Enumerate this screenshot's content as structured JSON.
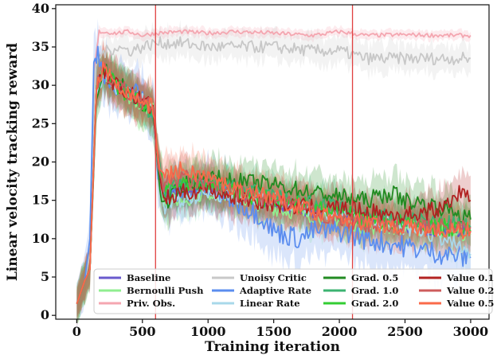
{
  "chart_data": {
    "type": "line",
    "title": "",
    "xlabel": "Training iteration",
    "ylabel": "Linear velocity tracking reward",
    "xlim": [
      -160,
      3140
    ],
    "ylim": [
      -0.5,
      40.5
    ],
    "xticks": [
      0,
      500,
      1000,
      1500,
      2000,
      2500,
      3000
    ],
    "yticks": [
      0,
      5,
      10,
      15,
      20,
      25,
      30,
      35,
      40
    ],
    "grid": false,
    "legend": "bottom",
    "legend_columns": 4,
    "vlines": [
      {
        "x": 600,
        "color": "#e04040"
      },
      {
        "x": 2100,
        "color": "#e04040"
      }
    ],
    "series": [
      {
        "name": "Baseline",
        "color": "#6a5acd",
        "band": 1.8,
        "points": [
          [
            0,
            1.5
          ],
          [
            60,
            4.5
          ],
          [
            100,
            6
          ],
          [
            150,
            30
          ],
          [
            200,
            32
          ],
          [
            300,
            30
          ],
          [
            400,
            29
          ],
          [
            500,
            28
          ],
          [
            580,
            27
          ],
          [
            620,
            20
          ],
          [
            660,
            16
          ],
          [
            800,
            16.5
          ],
          [
            1000,
            16
          ],
          [
            1200,
            15.5
          ],
          [
            1500,
            14.5
          ],
          [
            1800,
            13.5
          ],
          [
            2000,
            13
          ],
          [
            2200,
            12
          ],
          [
            2500,
            11.5
          ],
          [
            2800,
            11
          ],
          [
            3000,
            11
          ]
        ]
      },
      {
        "name": "Bernoulli Push",
        "color": "#90ee90",
        "band": 2.2,
        "points": [
          [
            0,
            1.5
          ],
          [
            60,
            4.5
          ],
          [
            100,
            6
          ],
          [
            150,
            29
          ],
          [
            200,
            32
          ],
          [
            300,
            30
          ],
          [
            400,
            28.5
          ],
          [
            500,
            27.5
          ],
          [
            580,
            27
          ],
          [
            620,
            20
          ],
          [
            660,
            15
          ],
          [
            800,
            15
          ],
          [
            1000,
            16
          ],
          [
            1200,
            15.5
          ],
          [
            1500,
            14
          ],
          [
            1800,
            13
          ],
          [
            2000,
            12.5
          ],
          [
            2200,
            11.5
          ],
          [
            2500,
            11.5
          ],
          [
            2800,
            11
          ],
          [
            3000,
            10.5
          ]
        ]
      },
      {
        "name": "Priv. Obs.",
        "color": "#f4a6b0",
        "band": 0.6,
        "points": [
          [
            0,
            1.5
          ],
          [
            60,
            4.5
          ],
          [
            100,
            8
          ],
          [
            140,
            33
          ],
          [
            170,
            37
          ],
          [
            300,
            36.8
          ],
          [
            400,
            37
          ],
          [
            500,
            36.5
          ],
          [
            600,
            36.8
          ],
          [
            800,
            37
          ],
          [
            1000,
            36.8
          ],
          [
            1200,
            37
          ],
          [
            1500,
            36.8
          ],
          [
            1800,
            36.5
          ],
          [
            2000,
            37
          ],
          [
            2200,
            36.5
          ],
          [
            2500,
            36.6
          ],
          [
            2800,
            36.5
          ],
          [
            3000,
            36.5
          ]
        ]
      },
      {
        "name": "Unoisy Critic",
        "color": "#c8c8c8",
        "band": 1.8,
        "points": [
          [
            0,
            1.5
          ],
          [
            60,
            4.5
          ],
          [
            100,
            8
          ],
          [
            140,
            32
          ],
          [
            180,
            34
          ],
          [
            300,
            35
          ],
          [
            400,
            34.5
          ],
          [
            500,
            35
          ],
          [
            600,
            35.5
          ],
          [
            800,
            35.5
          ],
          [
            1000,
            35
          ],
          [
            1200,
            35
          ],
          [
            1500,
            35
          ],
          [
            1800,
            34.5
          ],
          [
            2000,
            34.5
          ],
          [
            2200,
            33.5
          ],
          [
            2500,
            33.5
          ],
          [
            2800,
            33.5
          ],
          [
            3000,
            33.5
          ]
        ]
      },
      {
        "name": "Adaptive Rate",
        "color": "#5b8def",
        "band": 3.2,
        "points": [
          [
            0,
            1.5
          ],
          [
            60,
            4.5
          ],
          [
            100,
            10
          ],
          [
            130,
            33
          ],
          [
            160,
            34.5
          ],
          [
            200,
            32
          ],
          [
            300,
            29
          ],
          [
            400,
            29.5
          ],
          [
            500,
            28.5
          ],
          [
            580,
            27
          ],
          [
            620,
            19
          ],
          [
            660,
            15
          ],
          [
            800,
            16
          ],
          [
            1000,
            16.5
          ],
          [
            1200,
            15
          ],
          [
            1400,
            13
          ],
          [
            1500,
            11
          ],
          [
            1700,
            10
          ],
          [
            1800,
            11
          ],
          [
            2000,
            11
          ],
          [
            2200,
            10
          ],
          [
            2500,
            9
          ],
          [
            2800,
            8
          ],
          [
            3000,
            7.5
          ]
        ]
      },
      {
        "name": "Linear Rate",
        "color": "#a8d8ea",
        "band": 2.2,
        "points": [
          [
            0,
            1.5
          ],
          [
            60,
            4.5
          ],
          [
            100,
            6
          ],
          [
            150,
            29
          ],
          [
            200,
            31
          ],
          [
            300,
            29.5
          ],
          [
            400,
            29
          ],
          [
            500,
            28
          ],
          [
            580,
            27
          ],
          [
            620,
            19
          ],
          [
            660,
            14
          ],
          [
            800,
            15
          ],
          [
            1000,
            16
          ],
          [
            1200,
            15.5
          ],
          [
            1500,
            15
          ],
          [
            1800,
            13.5
          ],
          [
            2000,
            13.5
          ],
          [
            2200,
            12.5
          ],
          [
            2500,
            11.5
          ],
          [
            2800,
            10
          ],
          [
            3000,
            8
          ]
        ]
      },
      {
        "name": "Grad. 0.5",
        "color": "#228b22",
        "band": 2.5,
        "points": [
          [
            0,
            1.5
          ],
          [
            60,
            4.5
          ],
          [
            100,
            6
          ],
          [
            150,
            28
          ],
          [
            200,
            32
          ],
          [
            300,
            30.5
          ],
          [
            400,
            29
          ],
          [
            500,
            27.5
          ],
          [
            580,
            26.5
          ],
          [
            620,
            19
          ],
          [
            660,
            14
          ],
          [
            800,
            17
          ],
          [
            1000,
            18
          ],
          [
            1200,
            17.5
          ],
          [
            1500,
            17
          ],
          [
            1800,
            16
          ],
          [
            2000,
            15.5
          ],
          [
            2200,
            15
          ],
          [
            2400,
            16
          ],
          [
            2500,
            15
          ],
          [
            2800,
            14
          ],
          [
            3000,
            12.5
          ]
        ]
      },
      {
        "name": "Grad. 1.0",
        "color": "#3cb371",
        "band": 2.5,
        "points": [
          [
            0,
            1.5
          ],
          [
            60,
            4.5
          ],
          [
            100,
            6
          ],
          [
            150,
            29
          ],
          [
            200,
            32
          ],
          [
            300,
            30
          ],
          [
            400,
            29
          ],
          [
            500,
            27.5
          ],
          [
            580,
            26.5
          ],
          [
            620,
            20
          ],
          [
            660,
            16
          ],
          [
            800,
            17
          ],
          [
            1000,
            17
          ],
          [
            1200,
            16.5
          ],
          [
            1500,
            15.5
          ],
          [
            1800,
            14.5
          ],
          [
            2000,
            14
          ],
          [
            2200,
            13
          ],
          [
            2500,
            12.5
          ],
          [
            2800,
            12
          ],
          [
            3000,
            11.5
          ]
        ]
      },
      {
        "name": "Grad. 2.0",
        "color": "#32cd32",
        "band": 2.5,
        "points": [
          [
            0,
            1.5
          ],
          [
            60,
            4.5
          ],
          [
            100,
            6
          ],
          [
            150,
            30
          ],
          [
            200,
            32
          ],
          [
            300,
            30
          ],
          [
            400,
            28.5
          ],
          [
            500,
            27.5
          ],
          [
            580,
            27
          ],
          [
            620,
            20
          ],
          [
            660,
            16
          ],
          [
            800,
            17.5
          ],
          [
            1000,
            17
          ],
          [
            1200,
            16
          ],
          [
            1500,
            15
          ],
          [
            1800,
            14
          ],
          [
            2000,
            13.5
          ],
          [
            2200,
            12.5
          ],
          [
            2500,
            12
          ],
          [
            2800,
            11.5
          ],
          [
            3000,
            11
          ]
        ]
      },
      {
        "name": "Value 0.1",
        "color": "#b22222",
        "band": 2.5,
        "points": [
          [
            0,
            1.5
          ],
          [
            60,
            4.5
          ],
          [
            100,
            6
          ],
          [
            150,
            30
          ],
          [
            200,
            32
          ],
          [
            300,
            30
          ],
          [
            400,
            29
          ],
          [
            500,
            28
          ],
          [
            580,
            27
          ],
          [
            620,
            20
          ],
          [
            660,
            15
          ],
          [
            800,
            16
          ],
          [
            1000,
            16.5
          ],
          [
            1200,
            15.5
          ],
          [
            1500,
            14.5
          ],
          [
            1800,
            14
          ],
          [
            2000,
            14
          ],
          [
            2200,
            13.5
          ],
          [
            2500,
            13
          ],
          [
            2800,
            14
          ],
          [
            2900,
            16
          ],
          [
            3000,
            15
          ]
        ]
      },
      {
        "name": "Value 0.2",
        "color": "#cd5c5c",
        "band": 2.5,
        "points": [
          [
            0,
            1.5
          ],
          [
            60,
            4.5
          ],
          [
            100,
            6
          ],
          [
            150,
            29
          ],
          [
            200,
            32
          ],
          [
            300,
            30
          ],
          [
            400,
            29
          ],
          [
            500,
            28
          ],
          [
            580,
            27
          ],
          [
            620,
            20
          ],
          [
            660,
            17
          ],
          [
            800,
            18
          ],
          [
            1000,
            17
          ],
          [
            1200,
            16
          ],
          [
            1500,
            15
          ],
          [
            1800,
            13.5
          ],
          [
            2000,
            12.5
          ],
          [
            2200,
            12
          ],
          [
            2500,
            11.5
          ],
          [
            2800,
            11.5
          ],
          [
            3000,
            11.5
          ]
        ]
      },
      {
        "name": "Value 0.5",
        "color": "#fa6a4a",
        "band": 2.5,
        "points": [
          [
            0,
            1.5
          ],
          [
            60,
            4.5
          ],
          [
            100,
            6
          ],
          [
            150,
            30
          ],
          [
            200,
            32
          ],
          [
            300,
            30.5
          ],
          [
            400,
            29
          ],
          [
            500,
            28
          ],
          [
            580,
            27
          ],
          [
            620,
            21
          ],
          [
            660,
            18
          ],
          [
            800,
            19
          ],
          [
            1000,
            18
          ],
          [
            1200,
            16.5
          ],
          [
            1500,
            15.5
          ],
          [
            1800,
            13.5
          ],
          [
            2000,
            13
          ],
          [
            2200,
            12
          ],
          [
            2500,
            11.5
          ],
          [
            2800,
            11
          ],
          [
            3000,
            11
          ]
        ]
      }
    ]
  }
}
